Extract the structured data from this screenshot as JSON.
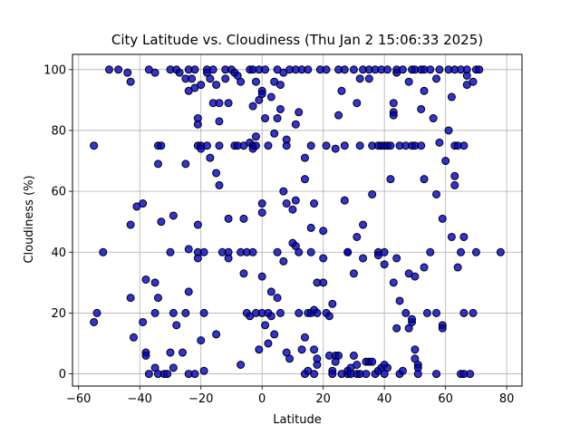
{
  "chart_data": {
    "type": "scatter",
    "title": "City Latitude vs. Cloudiness (Thu Jan  2 15:06:33 2025)",
    "xlabel": "Latitude",
    "ylabel": "Cloudiness (%)",
    "xlim": [
      -62,
      85
    ],
    "ylim": [
      -4,
      105
    ],
    "xticks": [
      -60,
      -40,
      -20,
      0,
      20,
      40,
      60,
      80
    ],
    "yticks": [
      0,
      20,
      40,
      60,
      80,
      100
    ],
    "grid": true,
    "marker_color": "#0000cc",
    "marker_edge_color": "#000000",
    "points": [
      [
        -55,
        75
      ],
      [
        -55,
        17
      ],
      [
        -54,
        20
      ],
      [
        -52,
        40
      ],
      [
        -50,
        100
      ],
      [
        -47,
        100
      ],
      [
        -44,
        99
      ],
      [
        -43,
        96
      ],
      [
        -43,
        49
      ],
      [
        -43,
        25
      ],
      [
        -42,
        12
      ],
      [
        -41,
        55
      ],
      [
        -39,
        56
      ],
      [
        -39,
        17
      ],
      [
        -38,
        31
      ],
      [
        -38,
        7
      ],
      [
        -38,
        6
      ],
      [
        -37,
        0
      ],
      [
        -37,
        100
      ],
      [
        -35,
        30
      ],
      [
        -35,
        20
      ],
      [
        -35,
        99
      ],
      [
        -34,
        69
      ],
      [
        -34,
        75
      ],
      [
        -33,
        75
      ],
      [
        -33,
        50
      ],
      [
        -34,
        25
      ],
      [
        -35,
        2
      ],
      [
        -34,
        0
      ],
      [
        -32,
        0
      ],
      [
        -31,
        0
      ],
      [
        -30,
        100
      ],
      [
        -30,
        40
      ],
      [
        -30,
        7
      ],
      [
        -29,
        52
      ],
      [
        -29,
        2
      ],
      [
        -29,
        20
      ],
      [
        -28,
        16
      ],
      [
        -28,
        100
      ],
      [
        -27,
        99
      ],
      [
        -26,
        7
      ],
      [
        -25,
        69
      ],
      [
        -25,
        97
      ],
      [
        -25,
        20
      ],
      [
        -24,
        100
      ],
      [
        -24,
        93
      ],
      [
        -24,
        27
      ],
      [
        -24,
        41
      ],
      [
        -24,
        0
      ],
      [
        -23,
        97
      ],
      [
        -22,
        94
      ],
      [
        -22,
        100
      ],
      [
        -22,
        0
      ],
      [
        -21,
        40
      ],
      [
        -21,
        38
      ],
      [
        -21,
        49
      ],
      [
        -21,
        75
      ],
      [
        -21,
        84
      ],
      [
        -21,
        82
      ],
      [
        -20,
        75
      ],
      [
        -20,
        95
      ],
      [
        -20,
        11
      ],
      [
        -20,
        74
      ],
      [
        -19,
        1
      ],
      [
        -19,
        20
      ],
      [
        -19,
        40
      ],
      [
        -18,
        75
      ],
      [
        -18,
        100
      ],
      [
        -18,
        99
      ],
      [
        -17,
        97
      ],
      [
        -17,
        71
      ],
      [
        -16,
        89
      ],
      [
        -16,
        100
      ],
      [
        -15,
        66
      ],
      [
        -15,
        13
      ],
      [
        -15,
        95
      ],
      [
        -14,
        62
      ],
      [
        -14,
        83
      ],
      [
        -14,
        75
      ],
      [
        -14,
        89
      ],
      [
        -13,
        40
      ],
      [
        -12,
        100
      ],
      [
        -12,
        97
      ],
      [
        -11,
        89
      ],
      [
        -11,
        51
      ],
      [
        -11,
        40
      ],
      [
        -11,
        38
      ],
      [
        -10,
        100
      ],
      [
        -9,
        75
      ],
      [
        -9,
        99
      ],
      [
        -8,
        75
      ],
      [
        -8,
        98
      ],
      [
        -7,
        96
      ],
      [
        -7,
        40
      ],
      [
        -7,
        3
      ],
      [
        -6,
        75
      ],
      [
        -6,
        51
      ],
      [
        -6,
        33
      ],
      [
        -5,
        40
      ],
      [
        -5,
        20
      ],
      [
        -4,
        19
      ],
      [
        -4,
        100
      ],
      [
        -4,
        76
      ],
      [
        -3,
        75
      ],
      [
        -3,
        74
      ],
      [
        -3,
        88
      ],
      [
        -3,
        40
      ],
      [
        -3,
        100
      ],
      [
        -2,
        96
      ],
      [
        -2,
        75
      ],
      [
        -2,
        78
      ],
      [
        -2,
        20
      ],
      [
        -1,
        90
      ],
      [
        -1,
        8
      ],
      [
        -1,
        100
      ],
      [
        0,
        93
      ],
      [
        0,
        92
      ],
      [
        0,
        56
      ],
      [
        0,
        53
      ],
      [
        0,
        32
      ],
      [
        0,
        20
      ],
      [
        1,
        84
      ],
      [
        1,
        16
      ],
      [
        1,
        100
      ],
      [
        2,
        75
      ],
      [
        2,
        20
      ],
      [
        2,
        10
      ],
      [
        3,
        91
      ],
      [
        3,
        27
      ],
      [
        3,
        19
      ],
      [
        4,
        96
      ],
      [
        4,
        79
      ],
      [
        4,
        13
      ],
      [
        5,
        84
      ],
      [
        5,
        100
      ],
      [
        5,
        25
      ],
      [
        5,
        40
      ],
      [
        6,
        87
      ],
      [
        6,
        95
      ],
      [
        6,
        20
      ],
      [
        7,
        60
      ],
      [
        7,
        99
      ],
      [
        7,
        37
      ],
      [
        8,
        77
      ],
      [
        8,
        75
      ],
      [
        8,
        56
      ],
      [
        8,
        7
      ],
      [
        9,
        100
      ],
      [
        9,
        5
      ],
      [
        10,
        43
      ],
      [
        10,
        54
      ],
      [
        11,
        82
      ],
      [
        11,
        57
      ],
      [
        11,
        42
      ],
      [
        11,
        100
      ],
      [
        12,
        20
      ],
      [
        12,
        86
      ],
      [
        12,
        40
      ],
      [
        13,
        8
      ],
      [
        13,
        100
      ],
      [
        14,
        64
      ],
      [
        14,
        71
      ],
      [
        14,
        0
      ],
      [
        14,
        12
      ],
      [
        15,
        1
      ],
      [
        15,
        100
      ],
      [
        15,
        20
      ],
      [
        16,
        48
      ],
      [
        16,
        40
      ],
      [
        16,
        20
      ],
      [
        16,
        75
      ],
      [
        17,
        56
      ],
      [
        17,
        21
      ],
      [
        17,
        8
      ],
      [
        17,
        0
      ],
      [
        18,
        30
      ],
      [
        18,
        3
      ],
      [
        18,
        20
      ],
      [
        18,
        5
      ],
      [
        19,
        100
      ],
      [
        20,
        47
      ],
      [
        20,
        30
      ],
      [
        20,
        38
      ],
      [
        21,
        75
      ],
      [
        21,
        100
      ],
      [
        21,
        20
      ],
      [
        22,
        19
      ],
      [
        22,
        6
      ],
      [
        23,
        23
      ],
      [
        23,
        1
      ],
      [
        23,
        0
      ],
      [
        24,
        74
      ],
      [
        24,
        6
      ],
      [
        24,
        4
      ],
      [
        25,
        100
      ],
      [
        25,
        85
      ],
      [
        25,
        6
      ],
      [
        26,
        93
      ],
      [
        26,
        0
      ],
      [
        27,
        75
      ],
      [
        27,
        57
      ],
      [
        27,
        100
      ],
      [
        28,
        0
      ],
      [
        28,
        1
      ],
      [
        28,
        40
      ],
      [
        28,
        40
      ],
      [
        29,
        0
      ],
      [
        29,
        2
      ],
      [
        30,
        100
      ],
      [
        30,
        33
      ],
      [
        30,
        6
      ],
      [
        31,
        0
      ],
      [
        31,
        89
      ],
      [
        31,
        3
      ],
      [
        31,
        45
      ],
      [
        32,
        97
      ],
      [
        32,
        0
      ],
      [
        32,
        75
      ],
      [
        33,
        49
      ],
      [
        33,
        38
      ],
      [
        33,
        100
      ],
      [
        34,
        0
      ],
      [
        34,
        4
      ],
      [
        35,
        97
      ],
      [
        35,
        100
      ],
      [
        35,
        4
      ],
      [
        36,
        59
      ],
      [
        36,
        75
      ],
      [
        36,
        4
      ],
      [
        37,
        0
      ],
      [
        37,
        100
      ],
      [
        38,
        40
      ],
      [
        38,
        39
      ],
      [
        38,
        75
      ],
      [
        38,
        1
      ],
      [
        39,
        2
      ],
      [
        39,
        75
      ],
      [
        39,
        100
      ],
      [
        40,
        3
      ],
      [
        40,
        40
      ],
      [
        40,
        75
      ],
      [
        40,
        0
      ],
      [
        40,
        36
      ],
      [
        41,
        2
      ],
      [
        41,
        75
      ],
      [
        41,
        100
      ],
      [
        42,
        64
      ],
      [
        42,
        75
      ],
      [
        43,
        86
      ],
      [
        43,
        89
      ],
      [
        43,
        85
      ],
      [
        43,
        30
      ],
      [
        44,
        99
      ],
      [
        44,
        15
      ],
      [
        44,
        38
      ],
      [
        44,
        100
      ],
      [
        45,
        75
      ],
      [
        45,
        24
      ],
      [
        45,
        0
      ],
      [
        46,
        1
      ],
      [
        46,
        100
      ],
      [
        47,
        75
      ],
      [
        47,
        20
      ],
      [
        48,
        33
      ],
      [
        48,
        96
      ],
      [
        48,
        15
      ],
      [
        49,
        75
      ],
      [
        49,
        100
      ],
      [
        49,
        17
      ],
      [
        49,
        18
      ],
      [
        50,
        8
      ],
      [
        50,
        75
      ],
      [
        50,
        5
      ],
      [
        50,
        100
      ],
      [
        50,
        32
      ],
      [
        51,
        3
      ],
      [
        51,
        2
      ],
      [
        51,
        0
      ],
      [
        52,
        100
      ],
      [
        52,
        87
      ],
      [
        52,
        75
      ],
      [
        53,
        64
      ],
      [
        53,
        93
      ],
      [
        53,
        35
      ],
      [
        53,
        100
      ],
      [
        54,
        20
      ],
      [
        55,
        40
      ],
      [
        55,
        100
      ],
      [
        56,
        84
      ],
      [
        57,
        59
      ],
      [
        57,
        0
      ],
      [
        57,
        97
      ],
      [
        57,
        20
      ],
      [
        58,
        76
      ],
      [
        58,
        100
      ],
      [
        59,
        51
      ],
      [
        59,
        16
      ],
      [
        59,
        15
      ],
      [
        60,
        70
      ],
      [
        61,
        100
      ],
      [
        61,
        80
      ],
      [
        62,
        91
      ],
      [
        62,
        45
      ],
      [
        63,
        65
      ],
      [
        63,
        62
      ],
      [
        63,
        75
      ],
      [
        63,
        100
      ],
      [
        64,
        35
      ],
      [
        64,
        75
      ],
      [
        65,
        40
      ],
      [
        65,
        0
      ],
      [
        65,
        100
      ],
      [
        66,
        0
      ],
      [
        66,
        45
      ],
      [
        66,
        75
      ],
      [
        66,
        20
      ],
      [
        67,
        98
      ],
      [
        67,
        95
      ],
      [
        67,
        100
      ],
      [
        68,
        0
      ],
      [
        69,
        96
      ],
      [
        69,
        20
      ],
      [
        70,
        100
      ],
      [
        70,
        40
      ],
      [
        71,
        100
      ],
      [
        78,
        40
      ]
    ]
  }
}
